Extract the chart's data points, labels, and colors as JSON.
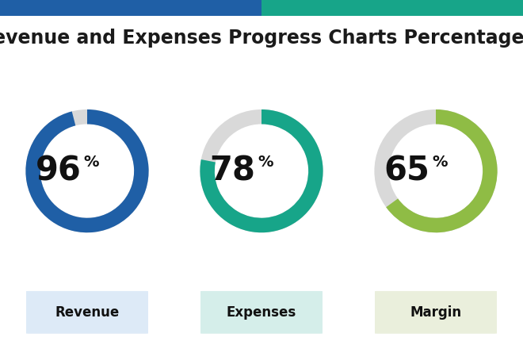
{
  "title": "Revenue and Expenses Progress Charts Percentage C",
  "title_color": "#1a1a1a",
  "title_fontsize": 17,
  "title_fontweight": "bold",
  "header_bar_left": "#1f5fa6",
  "header_bar_right": "#17a589",
  "background_color": "#ffffff",
  "charts": [
    {
      "label": "Revenue",
      "value": 96,
      "color": "#1f5fa6",
      "bg_color": "#d9d9d9",
      "label_bg": "#ddeaf7"
    },
    {
      "label": "Expenses",
      "value": 78,
      "color": "#17a589",
      "bg_color": "#d9d9d9",
      "label_bg": "#d5eeea"
    },
    {
      "label": "Margin",
      "value": 65,
      "color": "#8fbc45",
      "bg_color": "#d9d9d9",
      "label_bg": "#eaefdc"
    }
  ]
}
